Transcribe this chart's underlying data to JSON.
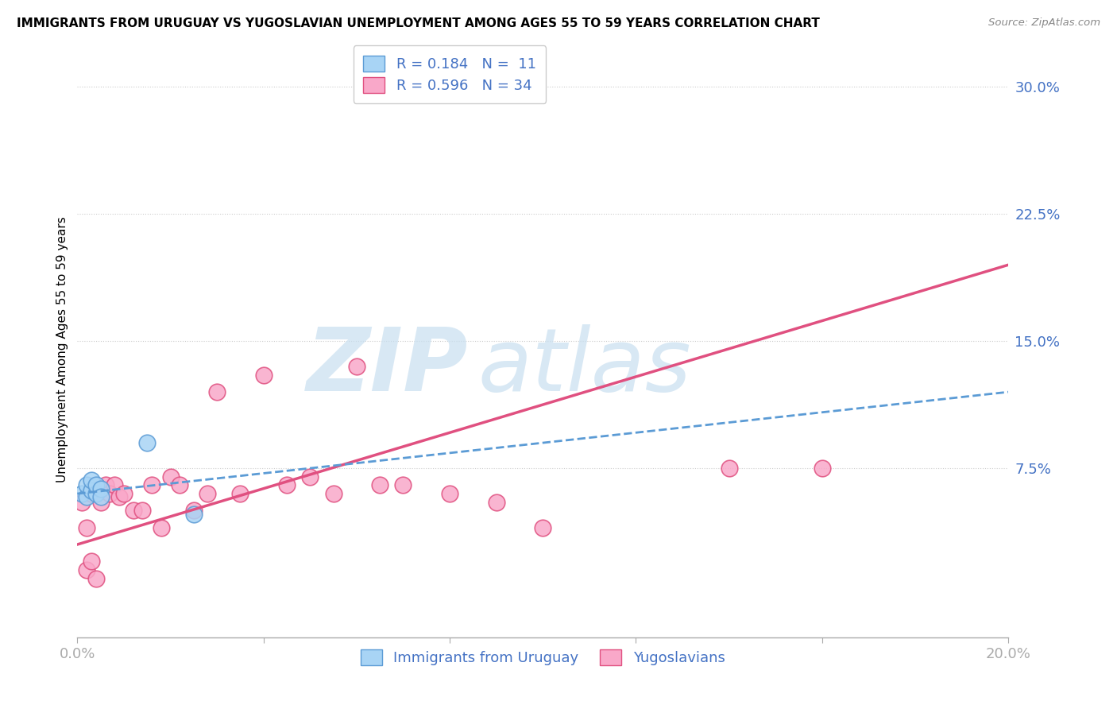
{
  "title": "IMMIGRANTS FROM URUGUAY VS YUGOSLAVIAN UNEMPLOYMENT AMONG AGES 55 TO 59 YEARS CORRELATION CHART",
  "source": "Source: ZipAtlas.com",
  "ylabel": "Unemployment Among Ages 55 to 59 years",
  "xlim": [
    0.0,
    0.2
  ],
  "ylim": [
    -0.025,
    0.315
  ],
  "yticks": [
    0.075,
    0.15,
    0.225,
    0.3
  ],
  "ytick_labels": [
    "7.5%",
    "15.0%",
    "22.5%",
    "30.0%"
  ],
  "xticks": [
    0.0,
    0.04,
    0.08,
    0.12,
    0.16,
    0.2
  ],
  "legend_R_uruguay": "R = 0.184",
  "legend_N_uruguay": "N =  11",
  "legend_R_yugoslav": "R = 0.596",
  "legend_N_yugoslav": "N = 34",
  "legend_label_uruguay": "Immigrants from Uruguay",
  "legend_label_yugoslav": "Yugoslavians",
  "color_uruguay_fill": "#a8d4f5",
  "color_uruguay_edge": "#5b9bd5",
  "color_yugoslav_fill": "#f9a8c9",
  "color_yugoslav_edge": "#e05080",
  "color_trendline_uruguay": "#5b9bd5",
  "color_trendline_yugoslav": "#e05080",
  "uruguay_x": [
    0.001,
    0.002,
    0.002,
    0.003,
    0.003,
    0.004,
    0.004,
    0.005,
    0.005,
    0.015,
    0.025
  ],
  "uruguay_y": [
    0.06,
    0.058,
    0.065,
    0.062,
    0.068,
    0.06,
    0.065,
    0.063,
    0.058,
    0.09,
    0.048
  ],
  "yugoslav_x": [
    0.001,
    0.002,
    0.002,
    0.003,
    0.003,
    0.004,
    0.005,
    0.006,
    0.007,
    0.008,
    0.009,
    0.01,
    0.012,
    0.014,
    0.016,
    0.018,
    0.02,
    0.022,
    0.025,
    0.028,
    0.03,
    0.035,
    0.04,
    0.045,
    0.05,
    0.055,
    0.06,
    0.065,
    0.07,
    0.08,
    0.09,
    0.1,
    0.14,
    0.16
  ],
  "yugoslav_y": [
    0.055,
    0.04,
    0.015,
    0.06,
    0.02,
    0.01,
    0.055,
    0.065,
    0.06,
    0.065,
    0.058,
    0.06,
    0.05,
    0.05,
    0.065,
    0.04,
    0.07,
    0.065,
    0.05,
    0.06,
    0.12,
    0.06,
    0.13,
    0.065,
    0.07,
    0.06,
    0.135,
    0.065,
    0.065,
    0.06,
    0.055,
    0.04,
    0.075,
    0.075
  ],
  "trendline_yug_x0": 0.0,
  "trendline_yug_y0": 0.03,
  "trendline_yug_x1": 0.2,
  "trendline_yug_y1": 0.195,
  "trendline_uru_x0": 0.0,
  "trendline_uru_y0": 0.06,
  "trendline_uru_x1": 0.2,
  "trendline_uru_y1": 0.12
}
